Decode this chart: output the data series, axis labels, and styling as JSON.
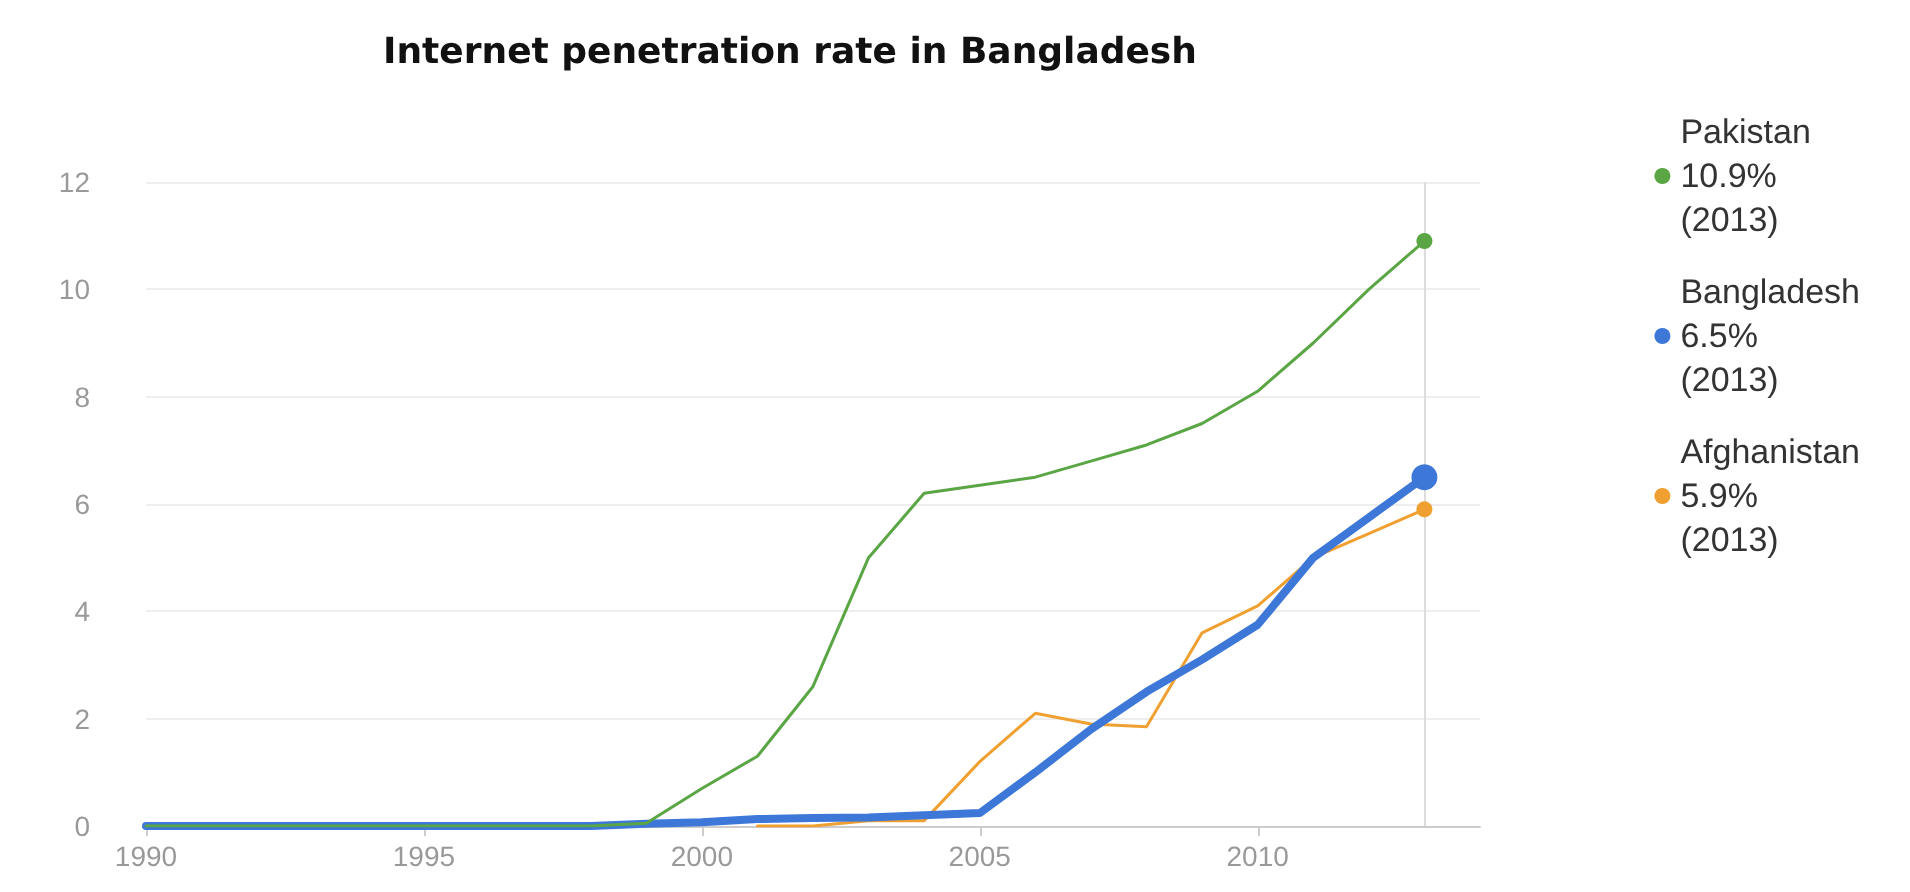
{
  "chart_data": {
    "type": "line",
    "title": "Internet penetration rate in Bangladesh",
    "x": [
      1990,
      1991,
      1992,
      1993,
      1994,
      1995,
      1996,
      1997,
      1998,
      1999,
      2000,
      2001,
      2002,
      2003,
      2004,
      2005,
      2006,
      2007,
      2008,
      2009,
      2010,
      2011,
      2012,
      2013
    ],
    "series": [
      {
        "name": "Pakistan\n10.9%\n(2013)",
        "color": "#5aa544",
        "values": [
          0,
          0,
          0,
          0,
          0,
          0,
          0,
          0,
          0,
          0.05,
          0.7,
          1.3,
          2.6,
          5.0,
          6.2,
          6.35,
          6.5,
          6.8,
          7.1,
          7.5,
          8.1,
          9.0,
          10.0,
          10.9
        ]
      },
      {
        "name": "Bangladesh\n6.5%\n(2013)",
        "color": "#3d78d8",
        "values": [
          0,
          0,
          0,
          0,
          0,
          0,
          0,
          0,
          0,
          0.04,
          0.07,
          0.13,
          0.15,
          0.16,
          0.2,
          0.24,
          1.0,
          1.8,
          2.5,
          3.1,
          3.75,
          5.0,
          5.75,
          6.5
        ]
      },
      {
        "name": "Afghanistan\n5.9%\n(2013)",
        "color": "#f0a030",
        "values": [
          null,
          null,
          null,
          null,
          null,
          null,
          null,
          null,
          null,
          null,
          null,
          0.0,
          0.0,
          0.1,
          0.1,
          1.2,
          2.1,
          1.9,
          1.85,
          3.6,
          4.1,
          5.0,
          5.45,
          5.9
        ]
      }
    ],
    "xlim": [
      1990,
      2014
    ],
    "xticks": [
      1990,
      1995,
      2000,
      2005,
      2010
    ],
    "ylim": [
      0,
      12
    ],
    "yticks": [
      0,
      2,
      4,
      6,
      8,
      10,
      12
    ],
    "ref_lines": [
      {
        "axis": "x",
        "value": 2013,
        "color": "#dddddd"
      }
    ],
    "grid": "y",
    "legend": "right",
    "line_style": "solid"
  }
}
